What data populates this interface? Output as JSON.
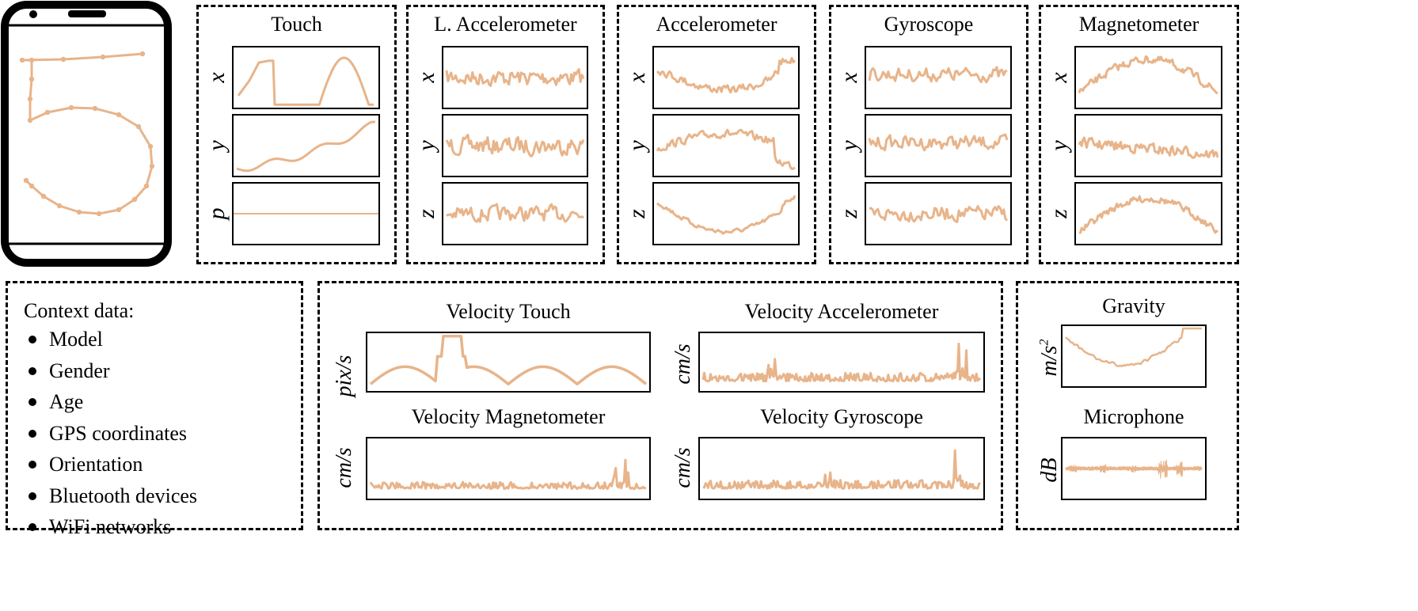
{
  "colors": {
    "signal": "#e8b48a",
    "frame": "#000000",
    "background": "#ffffff"
  },
  "phone": {
    "icon": "smartphone-icon",
    "digit_drawn": "5"
  },
  "panels": [
    {
      "title": "Touch",
      "axes": [
        "x",
        "y",
        "p"
      ]
    },
    {
      "title": "L. Accelerometer",
      "axes": [
        "x",
        "y",
        "z"
      ]
    },
    {
      "title": "Accelerometer",
      "axes": [
        "x",
        "y",
        "z"
      ]
    },
    {
      "title": "Gyroscope",
      "axes": [
        "x",
        "y",
        "z"
      ]
    },
    {
      "title": "Magnetometer",
      "axes": [
        "x",
        "y",
        "z"
      ]
    }
  ],
  "context": {
    "heading": "Context data:",
    "items": [
      "Model",
      "Gender",
      "Age",
      "GPS coordinates",
      "Orientation",
      "Bluetooth devices",
      "WiFi networks"
    ]
  },
  "velocity": {
    "touch": {
      "title": "Velocity Touch",
      "unit": "pix/s"
    },
    "accelerometer": {
      "title": "Velocity Accelerometer",
      "unit": "cm/s"
    },
    "magnetometer": {
      "title": "Velocity Magnetometer",
      "unit": "cm/s"
    },
    "gyroscope": {
      "title": "Velocity Gyroscope",
      "unit": "cm/s"
    }
  },
  "gravity": {
    "title": "Gravity",
    "unit": "m/s",
    "unit_power": "2"
  },
  "microphone": {
    "title": "Microphone",
    "unit": "dB"
  }
}
